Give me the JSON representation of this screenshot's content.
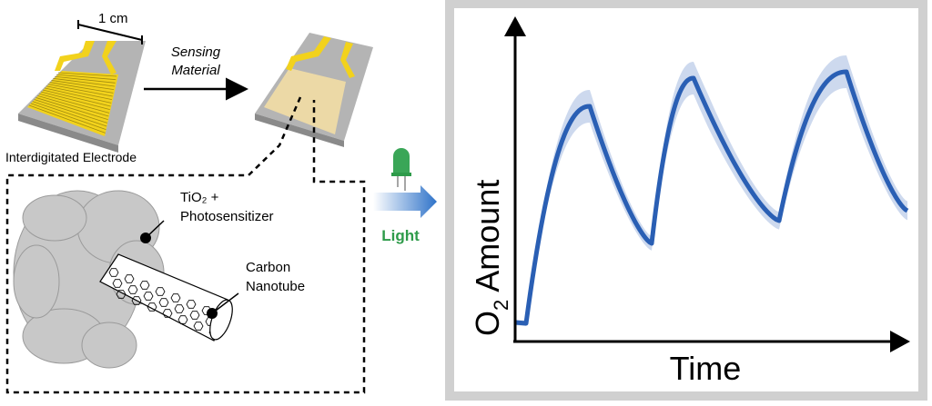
{
  "labels": {
    "scale": "1 cm",
    "arrow_top_line1": "Sensing",
    "arrow_top_line2": "Material",
    "electrode": "Interdigitated Electrode",
    "tio2": "TiO₂ +",
    "photosensitizer": "Photosensitizer",
    "carbon": "Carbon",
    "nanotube": "Nanotube",
    "light": "Light"
  },
  "chart": {
    "ylabel_main": "O",
    "ylabel_sub": "2",
    "ylabel_rest": " Amount",
    "xlabel": "Time"
  },
  "colors": {
    "gold": "#f2d21c",
    "substrate": "#b4b4b4",
    "coating": "#ecd9a6",
    "curve": "#2a5fb4",
    "band": "#cdd9ee",
    "light_green": "#2e9b4a",
    "frame": "#d0d0d0"
  }
}
